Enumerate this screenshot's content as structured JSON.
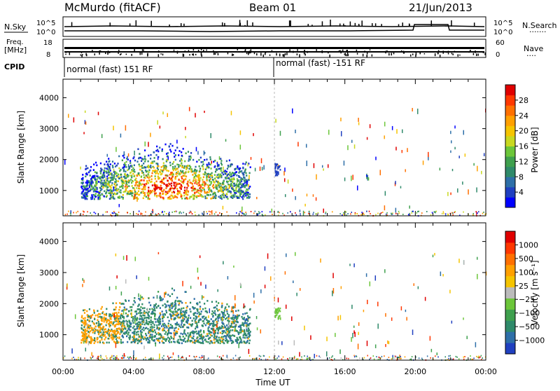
{
  "header": {
    "station": "McMurdo (fitACF)",
    "beam": "Beam 01",
    "date": "21/Jun/2013"
  },
  "status_panel": {
    "nsky_label": "N.Sky",
    "nsearch_label": "N.Search",
    "nsearch_dots": ".......",
    "left_ticks": [
      "10^5",
      "10^0"
    ],
    "right_ticks": [
      "10^5",
      "10^0"
    ],
    "freq_label_1": "Freq.",
    "freq_label_2": "[MHz]",
    "freq_ticks": [
      "18",
      "8"
    ],
    "nave_label": "Nave",
    "nave_dots": "....",
    "nave_ticks": [
      "60",
      "0"
    ],
    "cpid_label": "CPID",
    "cpid_segments": [
      {
        "label": "normal (fast) 151 RF",
        "start_hour": 0
      },
      {
        "label": "normal (fast) -151 RF",
        "start_hour": 12
      }
    ]
  },
  "chart_data": [
    {
      "type": "heatmap",
      "panel": "power",
      "ylabel": "Slant Range [km]",
      "xlabel": "",
      "ylim": [
        180,
        4600
      ],
      "yticks": [
        1000,
        2000,
        3000,
        4000
      ],
      "xlim": [
        0,
        24
      ],
      "colorbar": {
        "label": "Power [dB]",
        "ticks": [
          "28",
          "24",
          "20",
          "16",
          "12",
          "8",
          "4"
        ],
        "colors": [
          "#0000ff",
          "#2040c0",
          "#2e6fa8",
          "#2f8a6a",
          "#3fa04e",
          "#6cc63a",
          "#c8d820",
          "#f5c400",
          "#ffa000",
          "#ff7000",
          "#ff3800",
          "#e00000"
        ]
      },
      "regions": [
        {
          "x": [
            1.0,
            10.6
          ],
          "y": [
            600,
            2200
          ],
          "description_color": "mixed"
        },
        {
          "x": [
            12.0,
            12.3
          ],
          "y": [
            1500,
            1900
          ],
          "description_color": "mixed"
        }
      ]
    },
    {
      "type": "heatmap",
      "panel": "velocity",
      "ylabel": "Slant Range [km]",
      "xlabel": "Time UT",
      "ylim": [
        180,
        4600
      ],
      "yticks": [
        1000,
        2000,
        3000,
        4000
      ],
      "xlim": [
        0,
        24
      ],
      "xticks": [
        "00:00",
        "04:00",
        "08:00",
        "12:00",
        "16:00",
        "20:00",
        "00:00"
      ],
      "colorbar": {
        "label": "Velocity [m s⁻¹]",
        "ticks": [
          "1000",
          "500",
          "100",
          "25",
          "−25",
          "−100",
          "−500",
          "−1000"
        ],
        "colors": [
          "#2040c0",
          "#2e6fa8",
          "#2f8a6a",
          "#3fa04e",
          "#6cc63a",
          "#bbbbbb",
          "#f5c400",
          "#ffa000",
          "#ff7000",
          "#ff3800",
          "#e00000"
        ]
      }
    }
  ]
}
